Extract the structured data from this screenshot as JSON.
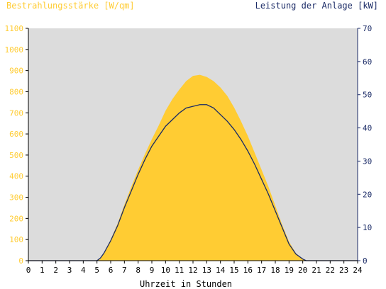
{
  "chart_data": {
    "type": "area",
    "title_left": "Bestrahlungsstärke [W/qm]",
    "title_right": "Leistung der Anlage [kW]",
    "xlabel": "Uhrzeit in Stunden",
    "x_ticks": [
      "0",
      "1",
      "2",
      "3",
      "4",
      "5",
      "6",
      "7",
      "8",
      "9",
      "10",
      "11",
      "12",
      "13",
      "14",
      "15",
      "16",
      "17",
      "18",
      "19",
      "20",
      "21",
      "22",
      "23",
      "24"
    ],
    "y_left_ticks": [
      "0",
      "100",
      "200",
      "300",
      "400",
      "500",
      "600",
      "700",
      "800",
      "900",
      "1000",
      "1100"
    ],
    "y_right_ticks": [
      "0",
      "10",
      "20",
      "30",
      "40",
      "50",
      "60",
      "70"
    ],
    "xlim": [
      0,
      24
    ],
    "ylim_left": [
      0,
      1100
    ],
    "ylim_right": [
      0,
      70
    ],
    "grid": false,
    "colors": {
      "plot_background": "#dcdcdc",
      "irradiance_fill": "#ffcc33",
      "power_line": "#1a2a66",
      "left_axis_text": "#ffcc33",
      "right_axis_text": "#1a2a66"
    },
    "series": [
      {
        "name": "Bestrahlungsstärke [W/qm]",
        "axis": "left",
        "style": "area",
        "x": [
          0,
          5,
          5.25,
          5.5,
          6,
          6.5,
          7,
          7.5,
          8,
          8.5,
          9,
          9.5,
          10,
          10.5,
          11,
          11.5,
          12,
          12.5,
          13,
          13.5,
          14,
          14.5,
          15,
          15.5,
          16,
          16.5,
          17,
          17.5,
          18,
          18.5,
          19,
          19.5,
          20,
          20.25,
          20.5,
          24
        ],
        "y": [
          0,
          0,
          8,
          35,
          100,
          175,
          265,
          350,
          430,
          505,
          575,
          640,
          710,
          765,
          810,
          850,
          875,
          880,
          870,
          850,
          820,
          780,
          725,
          660,
          590,
          510,
          430,
          350,
          260,
          170,
          90,
          35,
          8,
          0,
          0,
          0
        ]
      },
      {
        "name": "Leistung der Anlage [kW]",
        "axis": "right",
        "style": "line",
        "x": [
          0,
          5,
          5.25,
          5.5,
          6,
          6.5,
          7,
          7.5,
          8,
          8.5,
          9,
          9.5,
          10,
          10.5,
          11,
          11.5,
          12,
          12.5,
          13,
          13.5,
          14,
          14.5,
          15,
          15.5,
          16,
          16.5,
          17,
          17.5,
          18,
          18.5,
          19,
          19.5,
          20,
          20.25,
          20.5,
          24
        ],
        "y": [
          0,
          0,
          0.8,
          2.2,
          6,
          10.5,
          16,
          21,
          26,
          30.5,
          34.5,
          37.5,
          40.5,
          42.5,
          44.5,
          46,
          46.5,
          47,
          47,
          46,
          44,
          42,
          39.5,
          36.5,
          33,
          29,
          24.5,
          20,
          15,
          10,
          5,
          2,
          0.5,
          0,
          0,
          0
        ]
      }
    ]
  }
}
